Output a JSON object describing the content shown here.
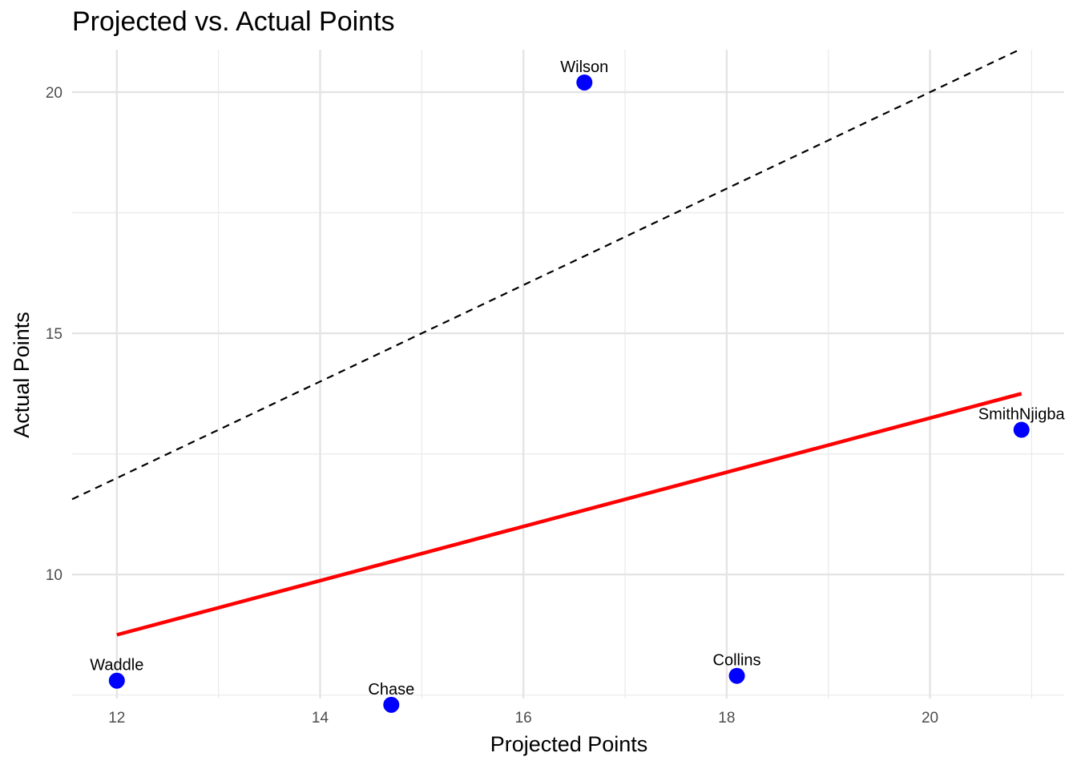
{
  "chart_data": {
    "type": "scatter",
    "title": "Projected vs. Actual Points",
    "xlabel": "Projected Points",
    "ylabel": "Actual Points",
    "xlim": [
      11.56,
      21.32
    ],
    "ylim": [
      7.43,
      20.88
    ],
    "x_ticks": [
      12,
      14,
      16,
      18,
      20
    ],
    "y_ticks": [
      10,
      15,
      20
    ],
    "grid": true,
    "points": [
      {
        "label": "Wilson",
        "x": 16.6,
        "y": 20.2
      },
      {
        "label": "SmithNjigba",
        "x": 20.9,
        "y": 13.0
      },
      {
        "label": "Collins",
        "x": 18.1,
        "y": 7.9
      },
      {
        "label": "Waddle",
        "x": 12.0,
        "y": 7.8
      },
      {
        "label": "Chase",
        "x": 14.7,
        "y": 7.3
      }
    ],
    "reference_line": {
      "slope": 1,
      "intercept": 0,
      "style": "dashed",
      "color": "#000000"
    },
    "fit_line": {
      "x": [
        12.0,
        20.9
      ],
      "y": [
        8.75,
        13.75
      ],
      "color": "#ff0000"
    },
    "point_color": "#0000ff"
  }
}
